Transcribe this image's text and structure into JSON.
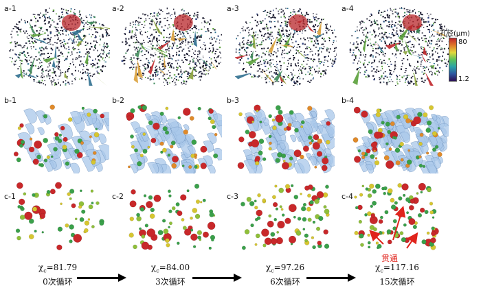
{
  "panels": {
    "a": [
      "a-1",
      "a-2",
      "a-3",
      "a-4"
    ],
    "b": [
      "b-1",
      "b-2",
      "b-3",
      "b-4"
    ],
    "c": [
      "c-1",
      "c-2",
      "c-3",
      "c-4"
    ]
  },
  "colorbar": {
    "title": "孔径(μm)",
    "max": "80",
    "min": "1.2"
  },
  "annotation": "贯通",
  "captions": [
    {
      "chi": "χ",
      "sub": "c",
      "value": "=81.79",
      "cycles": "0次循环"
    },
    {
      "chi": "χ",
      "sub": "c",
      "value": "=84.00",
      "cycles": "3次循环"
    },
    {
      "chi": "χ",
      "sub": "c",
      "value": "=97.26",
      "cycles": "6次循环"
    },
    {
      "chi": "χ",
      "sub": "c",
      "value": "=117.16",
      "cycles": "15次循环"
    }
  ],
  "colors": {
    "sphere_red": "#c8282a",
    "sphere_green": "#3aa04a",
    "sphere_yellow": "#d6c630",
    "pore_blue": "#9ec3e6",
    "arrow_red": "#e0241c"
  }
}
